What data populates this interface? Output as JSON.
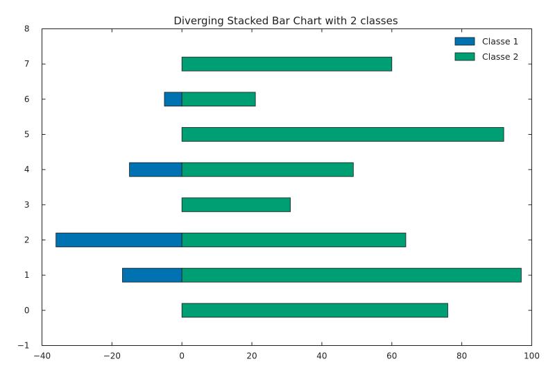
{
  "chart_data": {
    "type": "bar",
    "orientation": "horizontal",
    "stacking": "diverging",
    "title": "Diverging Stacked Bar Chart with 2 classes",
    "xlabel": "",
    "ylabel": "",
    "xlim": [
      -40,
      100
    ],
    "ylim": [
      -1,
      8
    ],
    "xticks": [
      -40,
      -20,
      0,
      20,
      40,
      60,
      80,
      100
    ],
    "yticks": [
      -1,
      0,
      1,
      2,
      3,
      4,
      5,
      6,
      7,
      8
    ],
    "categories": [
      0,
      1,
      2,
      3,
      4,
      5,
      6,
      7
    ],
    "grid": false,
    "legend_position": "top-right",
    "series": [
      {
        "name": "Classe 1",
        "color": "#0072b2",
        "values": [
          0,
          -17,
          -36,
          0,
          -15,
          0,
          -5,
          0
        ]
      },
      {
        "name": "Classe 2",
        "color": "#009e73",
        "values": [
          76,
          97,
          64,
          31,
          49,
          92,
          21,
          60
        ]
      }
    ]
  }
}
